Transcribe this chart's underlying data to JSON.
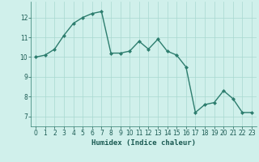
{
  "x": [
    0,
    1,
    2,
    3,
    4,
    5,
    6,
    7,
    8,
    9,
    10,
    11,
    12,
    13,
    14,
    15,
    16,
    17,
    18,
    19,
    20,
    21,
    22,
    23
  ],
  "y": [
    10.0,
    10.1,
    10.4,
    11.1,
    11.7,
    12.0,
    12.2,
    12.3,
    10.2,
    10.2,
    10.3,
    10.8,
    10.4,
    10.9,
    10.3,
    10.1,
    9.5,
    7.2,
    7.6,
    7.7,
    8.3,
    7.9,
    7.2,
    7.2
  ],
  "line_color": "#2d7d6e",
  "marker": "D",
  "marker_size": 2.0,
  "line_width": 1.0,
  "bg_color": "#d0f0eb",
  "grid_color": "#a8d8d0",
  "xlabel": "Humidex (Indice chaleur)",
  "xlim": [
    -0.5,
    23.5
  ],
  "ylim": [
    6.5,
    12.8
  ],
  "yticks": [
    7,
    8,
    9,
    10,
    11,
    12
  ],
  "xticks": [
    0,
    1,
    2,
    3,
    4,
    5,
    6,
    7,
    8,
    9,
    10,
    11,
    12,
    13,
    14,
    15,
    16,
    17,
    18,
    19,
    20,
    21,
    22,
    23
  ],
  "tick_label_fontsize": 5.5,
  "xlabel_fontsize": 6.5
}
